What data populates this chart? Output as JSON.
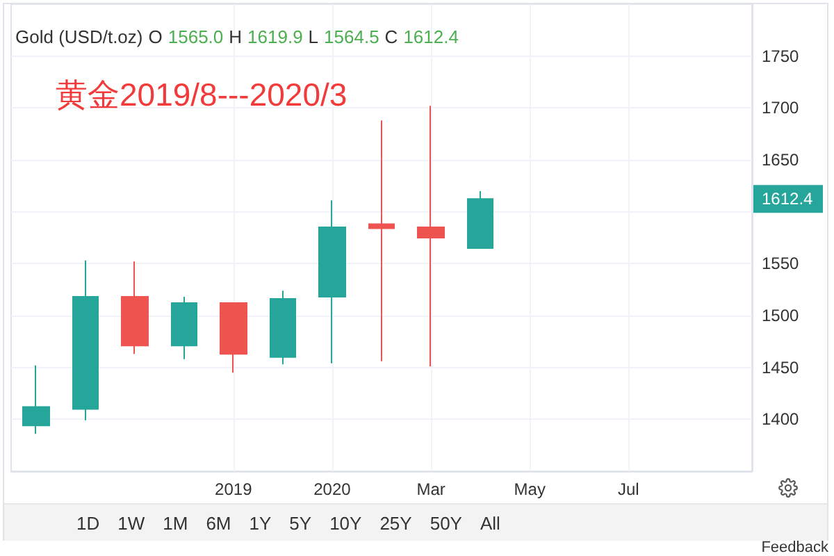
{
  "chart_data": {
    "type": "candlestick",
    "title": "Gold (USD/t.oz)",
    "subtitle": "黄金2019/8---2020/3",
    "categories": [
      null,
      null,
      null,
      null,
      "2019",
      null,
      "2020",
      null,
      "Mar",
      null,
      "May",
      null,
      "Jul",
      null,
      null
    ],
    "ohlc": [
      [
        1394,
        1452,
        1386,
        1412
      ],
      [
        1410,
        1553,
        1399,
        1518
      ],
      [
        1518,
        1552,
        1463,
        1471
      ],
      [
        1471,
        1518,
        1458,
        1512
      ],
      [
        1512,
        1512,
        1445,
        1463
      ],
      [
        1460,
        1524,
        1453,
        1516
      ],
      [
        1518,
        1611,
        1454,
        1585
      ],
      [
        1588,
        1688,
        1456,
        1584
      ],
      [
        1585,
        1702,
        1451,
        1575
      ],
      [
        1565.0,
        1619.9,
        1564.5,
        1612.4
      ],
      null,
      null,
      null,
      null,
      null
    ],
    "colors": [
      "#26a69a",
      "#26a69a",
      "#ef5350",
      "#26a69a",
      "#ef5350",
      "#26a69a",
      "#26a69a",
      "#ef5350",
      "#ef5350",
      "#26a69a",
      null,
      null,
      null,
      null,
      null
    ],
    "ylim": [
      1350,
      1800
    ],
    "yticks": [
      1400,
      1450,
      1500,
      1550,
      {
        "value": 1600,
        "label": null
      },
      1650,
      1700,
      1750
    ],
    "grid": true,
    "annotations": [
      "O 1565.0 H 1619.9 L 1564.5 C 1612.4",
      "1D",
      "1W",
      "1M",
      "6M",
      "1Y",
      "5Y",
      "10Y",
      "25Y",
      "50Y",
      "All",
      "Feedback",
      "1612.4"
    ]
  }
}
